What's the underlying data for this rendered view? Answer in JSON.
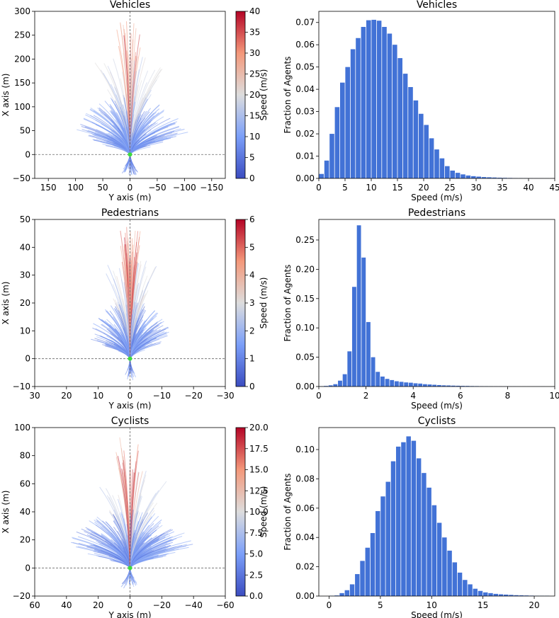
{
  "colors": {
    "bar": "#4272d6",
    "cmap_low": "#3b4cc0",
    "cmap_mid": "#dddddd",
    "cmap_high": "#b40426",
    "origin_dot": "#3ddc3d",
    "guide_line": "#666666"
  },
  "chart_data": [
    {
      "type": "trajectory_plot",
      "title": "Vehicles",
      "xlabel": "Y axis (m)",
      "ylabel": "X axis (m)",
      "xlim": [
        175,
        -175
      ],
      "ylim": [
        -50,
        300
      ],
      "xticks": [
        150,
        100,
        50,
        0,
        -50,
        -100,
        -150
      ],
      "xtick_labels": [
        "150",
        "100",
        "50",
        "0",
        "−50",
        "−100",
        "−150"
      ],
      "yticks": [
        -50,
        0,
        50,
        100,
        150,
        200,
        250,
        300
      ],
      "ytick_labels": [
        "−50",
        "0",
        "50",
        "100",
        "150",
        "200",
        "250",
        "300"
      ],
      "colorbar": {
        "label": "Speed (m/s)",
        "range": [
          0,
          40
        ],
        "ticks": [
          0,
          5,
          10,
          15,
          20,
          25,
          30,
          35,
          40
        ],
        "tick_labels": [
          "0",
          "5",
          "10",
          "15",
          "20",
          "25",
          "30",
          "35",
          "40"
        ]
      },
      "guide_lines": [
        "y=0",
        "x=0"
      ],
      "trajectory_reach": {
        "max_forward": 285,
        "max_lateral": 120,
        "max_backward": -45
      }
    },
    {
      "type": "bar",
      "title": "Vehicles",
      "xlabel": "Speed (m/s)",
      "ylabel": "Fraction of Agents",
      "xlim": [
        0,
        45
      ],
      "ylim": [
        0,
        0.075
      ],
      "xticks": [
        0,
        5,
        10,
        15,
        20,
        25,
        30,
        35,
        40,
        45
      ],
      "xtick_labels": [
        "0",
        "5",
        "10",
        "15",
        "20",
        "25",
        "30",
        "35",
        "40",
        "45"
      ],
      "yticks": [
        0,
        0.01,
        0.02,
        0.03,
        0.04,
        0.05,
        0.06,
        0.07
      ],
      "ytick_labels": [
        "0.00",
        "0.01",
        "0.02",
        "0.03",
        "0.04",
        "0.05",
        "0.06",
        "0.07"
      ],
      "bin_width": 1,
      "bin_start": 0,
      "values": [
        0.002,
        0.008,
        0.02,
        0.032,
        0.043,
        0.05,
        0.058,
        0.063,
        0.068,
        0.071,
        0.0712,
        0.0708,
        0.068,
        0.065,
        0.06,
        0.054,
        0.047,
        0.041,
        0.035,
        0.029,
        0.024,
        0.018,
        0.013,
        0.009,
        0.0055,
        0.0035,
        0.0025,
        0.0018,
        0.0013,
        0.001,
        0.0008,
        0.0006,
        0.0005,
        0.0004,
        0.0003,
        0.00025,
        0.0002,
        0.00015,
        0.00012,
        0.0001,
        8e-05,
        6e-05,
        5e-05,
        4e-05,
        3e-05
      ]
    },
    {
      "type": "trajectory_plot",
      "title": "Pedestrians",
      "xlabel": "Y axis (m)",
      "ylabel": "X axis (m)",
      "xlim": [
        30,
        -30
      ],
      "ylim": [
        -10,
        50
      ],
      "xticks": [
        30,
        20,
        10,
        0,
        -10,
        -20,
        -30
      ],
      "xtick_labels": [
        "30",
        "20",
        "10",
        "0",
        "−10",
        "−20",
        "−30"
      ],
      "yticks": [
        -10,
        0,
        10,
        20,
        30,
        40,
        50
      ],
      "ytick_labels": [
        "−10",
        "0",
        "10",
        "20",
        "30",
        "40",
        "50"
      ],
      "colorbar": {
        "label": "Speed (m/s)",
        "range": [
          0,
          6
        ],
        "ticks": [
          0,
          1,
          2,
          3,
          4,
          5,
          6
        ],
        "tick_labels": [
          "0",
          "1",
          "2",
          "3",
          "4",
          "5",
          "6"
        ]
      },
      "guide_lines": [
        "y=0",
        "x=0"
      ],
      "trajectory_reach": {
        "max_forward": 48,
        "max_lateral": 15,
        "max_backward": -8
      }
    },
    {
      "type": "bar",
      "title": "Pedestrians",
      "xlabel": "Speed (m/s)",
      "ylabel": "Fraction of Agents",
      "xlim": [
        0,
        10
      ],
      "ylim": [
        0,
        0.285
      ],
      "xticks": [
        0,
        2,
        4,
        6,
        8,
        10
      ],
      "xtick_labels": [
        "0",
        "2",
        "4",
        "6",
        "8",
        "10"
      ],
      "yticks": [
        0,
        0.05,
        0.1,
        0.15,
        0.2,
        0.25
      ],
      "ytick_labels": [
        "0.00",
        "0.05",
        "0.10",
        "0.15",
        "0.20",
        "0.25"
      ],
      "bin_width": 0.2,
      "bin_start": 0,
      "values": [
        0.0005,
        0.001,
        0.002,
        0.004,
        0.01,
        0.021,
        0.06,
        0.17,
        0.275,
        0.22,
        0.11,
        0.05,
        0.025,
        0.017,
        0.013,
        0.011,
        0.009,
        0.008,
        0.007,
        0.0065,
        0.0055,
        0.005,
        0.004,
        0.0035,
        0.003,
        0.0025,
        0.002,
        0.0018,
        0.0015,
        0.0013,
        0.0011,
        0.001,
        0.0008,
        0.0007,
        0.0006,
        0.0005,
        0.0004,
        0.0003,
        0.0003,
        0.0002,
        0.0002,
        0.0002,
        0.0001,
        0.0001,
        0.0001,
        0.0001,
        0.0001,
        0.0001
      ]
    },
    {
      "type": "trajectory_plot",
      "title": "Cyclists",
      "xlabel": "Y axis (m)",
      "ylabel": "X axis (m)",
      "xlim": [
        60,
        -60
      ],
      "ylim": [
        -20,
        100
      ],
      "xticks": [
        60,
        40,
        20,
        0,
        -20,
        -40,
        -60
      ],
      "xtick_labels": [
        "60",
        "40",
        "20",
        "0",
        "−20",
        "−40",
        "−60"
      ],
      "yticks": [
        -20,
        0,
        20,
        40,
        60,
        80,
        100
      ],
      "ytick_labels": [
        "−20",
        "0",
        "20",
        "40",
        "60",
        "80",
        "100"
      ],
      "colorbar": {
        "label": "Speed (m/s)",
        "range": [
          0,
          20
        ],
        "ticks": [
          0,
          2.5,
          5,
          7.5,
          10,
          12.5,
          15,
          17.5,
          20
        ],
        "tick_labels": [
          "0.0",
          "2.5",
          "5.0",
          "7.5",
          "10.0",
          "12.5",
          "15.0",
          "17.5",
          "20.0"
        ]
      },
      "guide_lines": [
        "y=0",
        "x=0"
      ],
      "trajectory_reach": {
        "max_forward": 95,
        "max_lateral": 45,
        "max_backward": -15
      }
    },
    {
      "type": "bar",
      "title": "Cyclists",
      "xlabel": "Speed (m/s)",
      "ylabel": "Fraction of Agents",
      "xlim": [
        -1,
        22
      ],
      "ylim": [
        0,
        0.115
      ],
      "xticks": [
        0,
        5,
        10,
        15,
        20
      ],
      "xtick_labels": [
        "0",
        "5",
        "10",
        "15",
        "20"
      ],
      "yticks": [
        0,
        0.02,
        0.04,
        0.06,
        0.08,
        0.1
      ],
      "ytick_labels": [
        "0.00",
        "0.02",
        "0.04",
        "0.06",
        "0.08",
        "0.10"
      ],
      "bin_width": 0.5,
      "bin_start": 0,
      "values": [
        0.0002,
        0.0004,
        0.002,
        0.004,
        0.008,
        0.015,
        0.024,
        0.033,
        0.043,
        0.058,
        0.068,
        0.078,
        0.092,
        0.102,
        0.105,
        0.109,
        0.106,
        0.094,
        0.084,
        0.074,
        0.062,
        0.05,
        0.04,
        0.031,
        0.023,
        0.016,
        0.011,
        0.008,
        0.005,
        0.0035,
        0.0025,
        0.002,
        0.0015,
        0.0012,
        0.001,
        0.0008,
        0.0006,
        0.0005,
        0.0004,
        0.0003,
        0.0002,
        0.0002,
        0.0002
      ]
    }
  ]
}
